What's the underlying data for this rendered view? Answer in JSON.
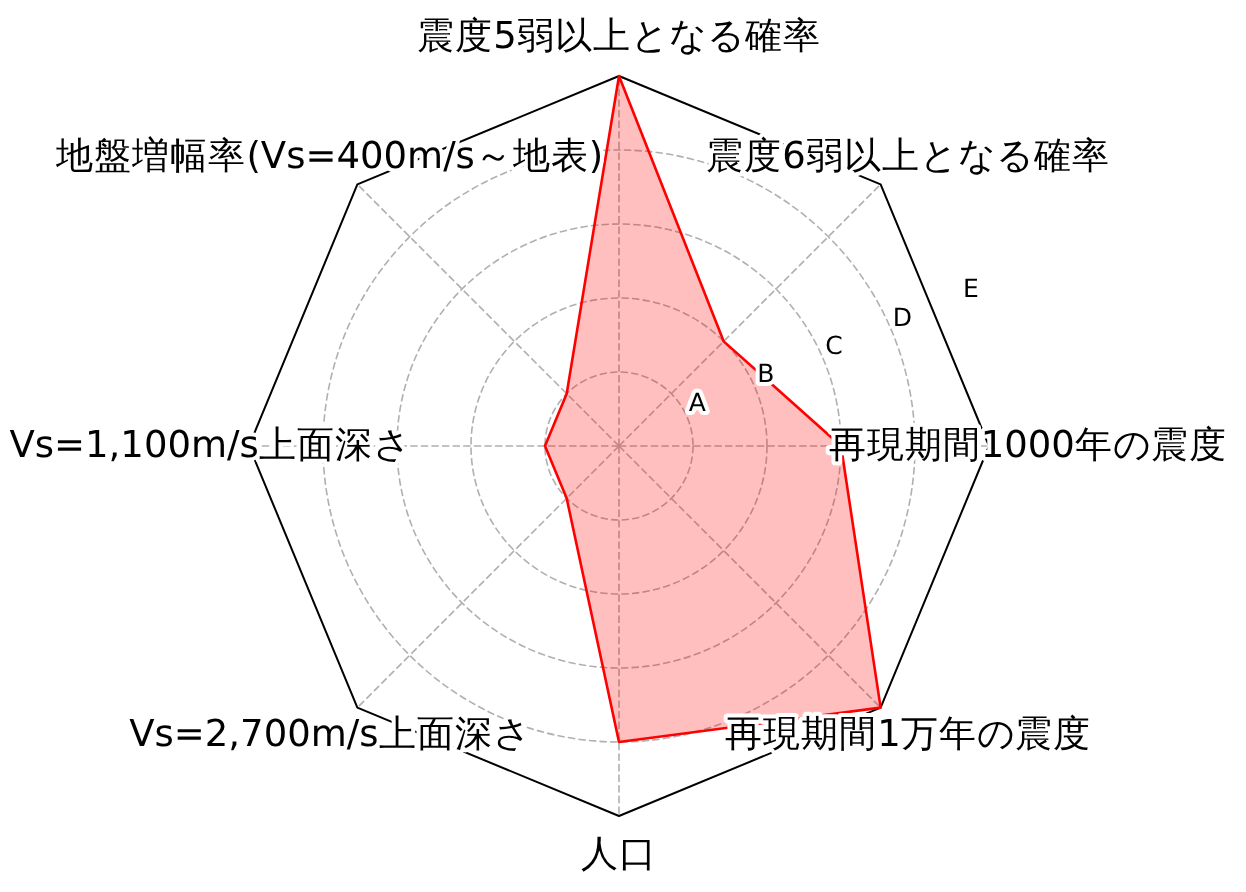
{
  "chart_data": {
    "type": "radar",
    "categories": [
      "震度5弱以上となる確率",
      "震度6弱以上となる確率",
      "再現期間1000年の震度",
      "再現期間1万年の震度",
      "人口",
      "Vs=2,700m/s上面深さ",
      "Vs=1,100m/s上面深さ",
      "地盤増幅率(Vs=400m/s～地表)"
    ],
    "series": [
      {
        "color": "#ff0000",
        "values": [
          5,
          2,
          3,
          5,
          4,
          1,
          1,
          1
        ]
      }
    ],
    "ylim": [
      0,
      5
    ],
    "yticks": [
      {
        "value": 1,
        "label": "A"
      },
      {
        "value": 2,
        "label": "B"
      },
      {
        "value": 3,
        "label": "C"
      },
      {
        "value": 4,
        "label": "D"
      },
      {
        "value": 5,
        "label": "E"
      }
    ],
    "grid": true
  }
}
